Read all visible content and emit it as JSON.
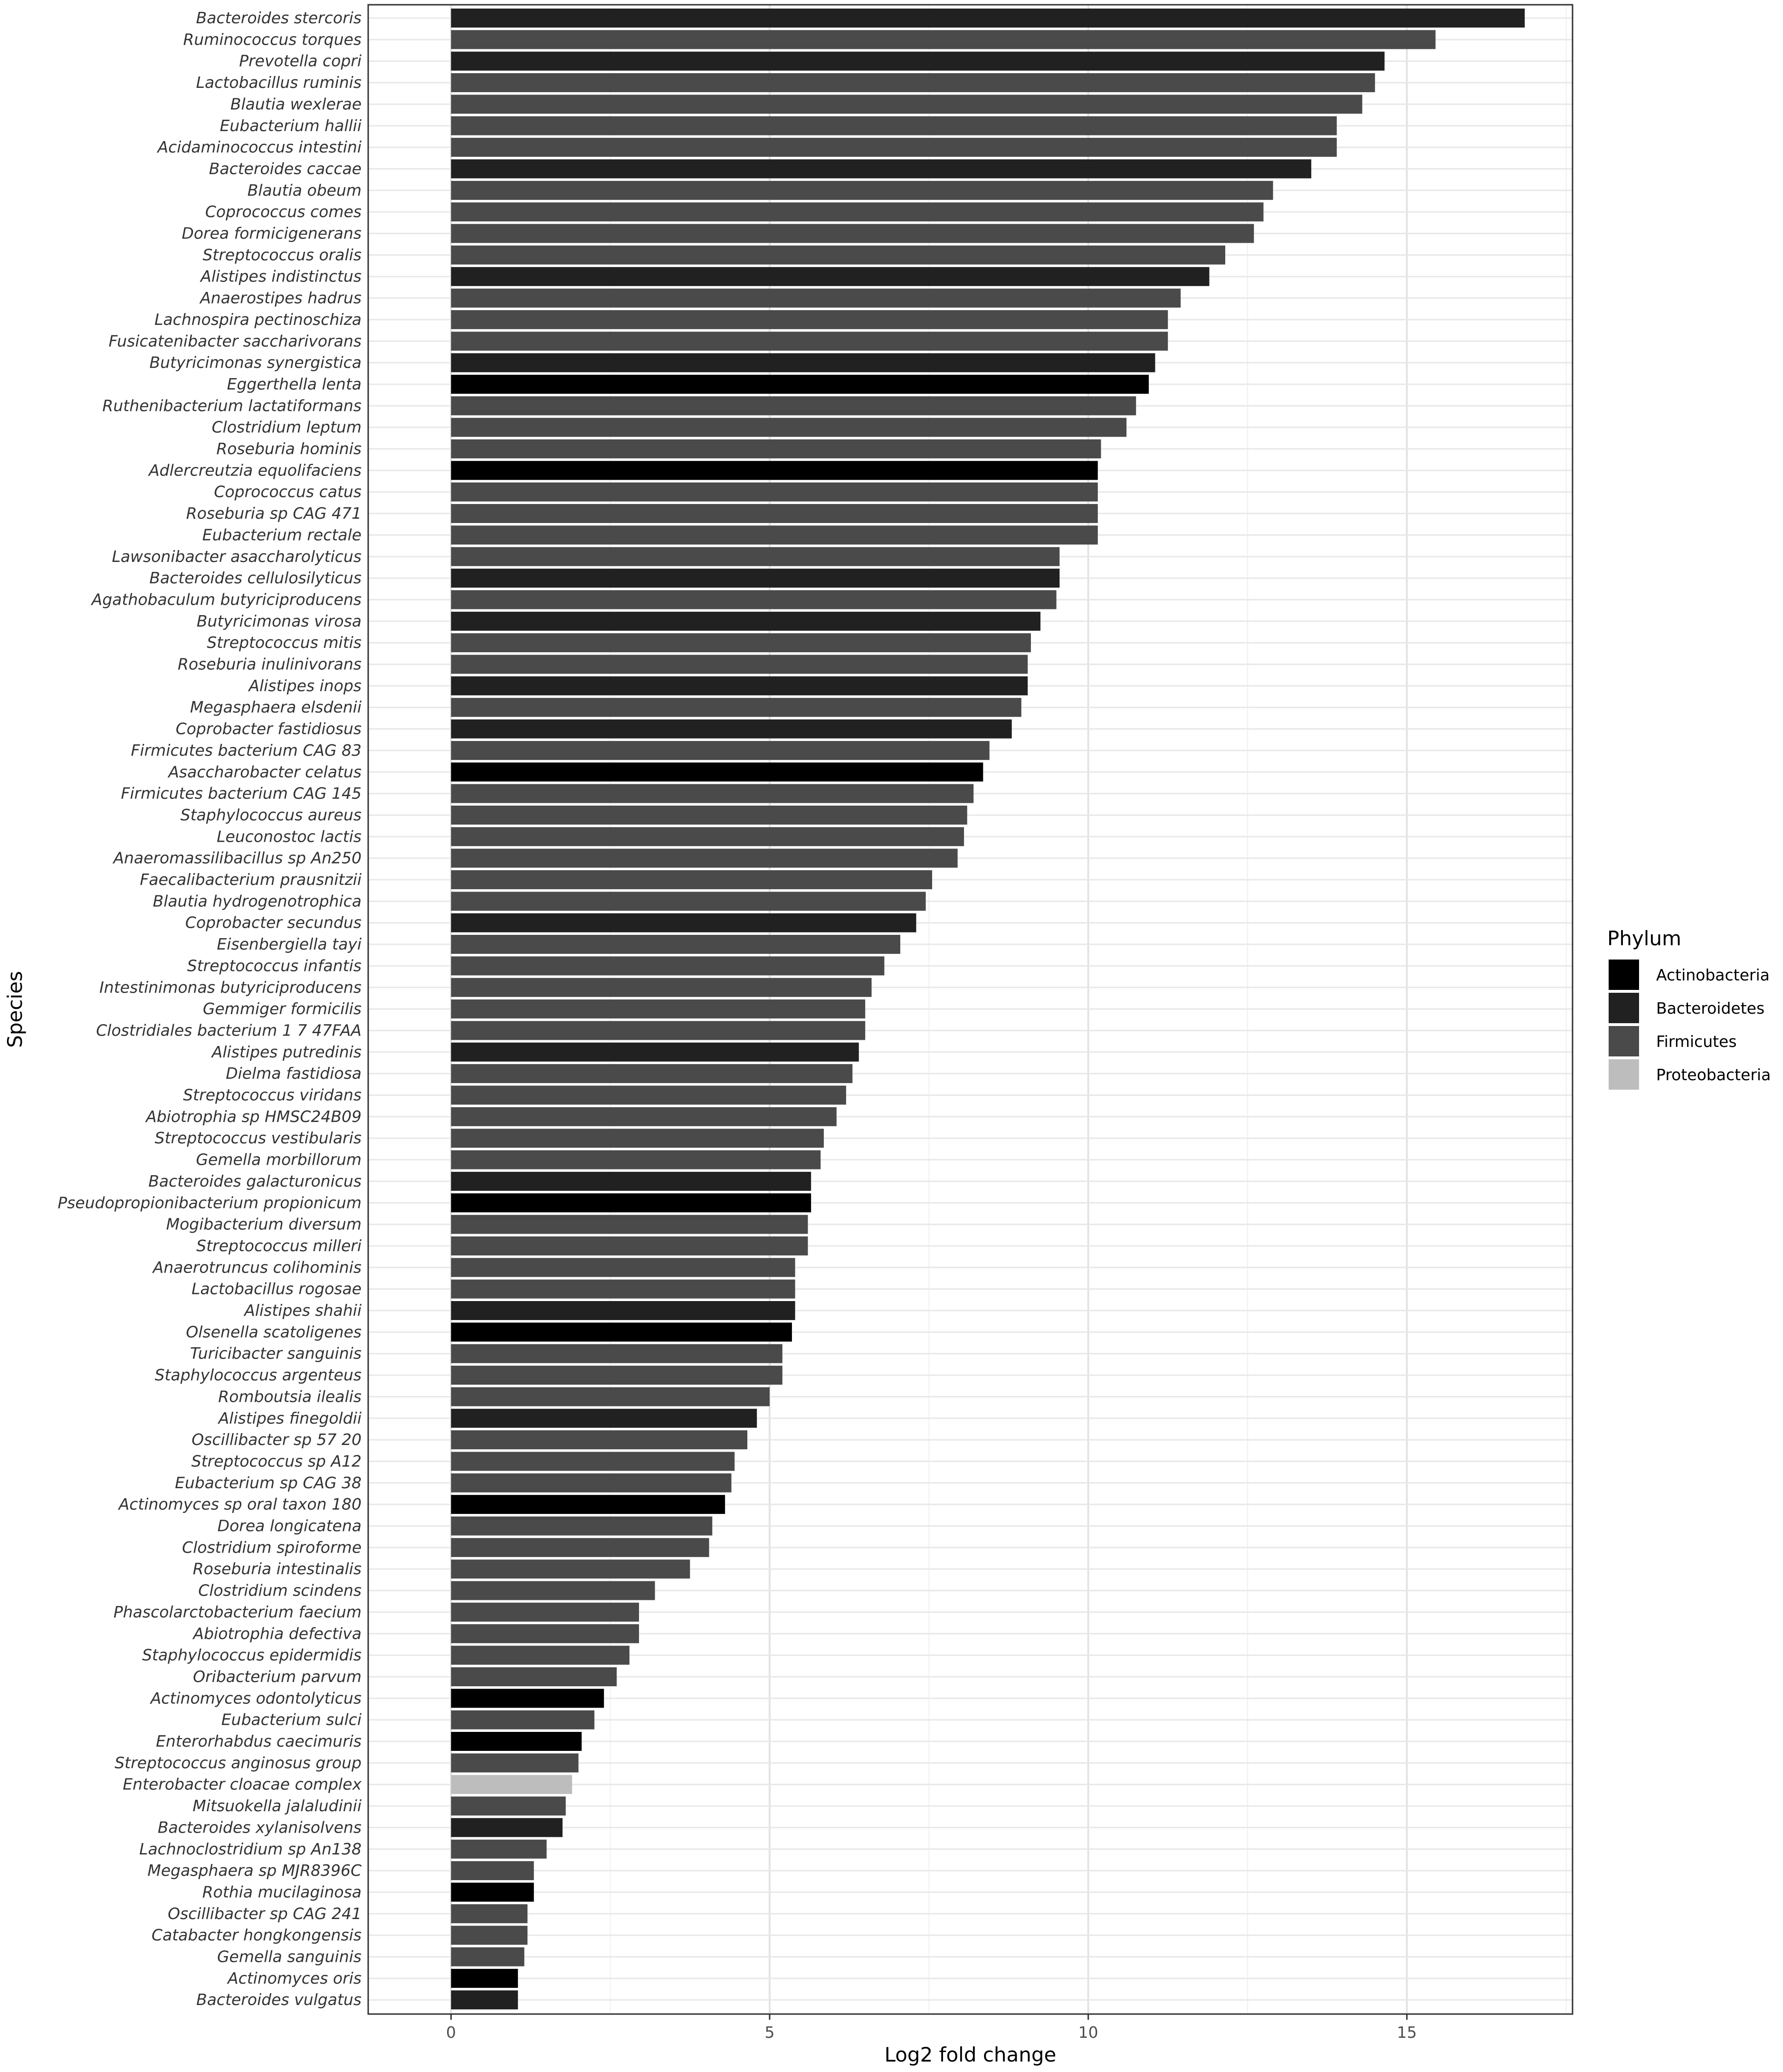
{
  "chart_data": {
    "type": "bar",
    "orientation": "horizontal",
    "xlabel": "Log2 fold change",
    "ylabel": "Species",
    "xlim": [
      -1.3,
      17.6
    ],
    "xticks": [
      0,
      5,
      10,
      15
    ],
    "grid": true,
    "legend": {
      "title": "Phylum",
      "placement": "right",
      "entries": [
        {
          "name": "Actinobacteria",
          "color": "#000000"
        },
        {
          "name": "Bacteroidetes",
          "color": "#212121"
        },
        {
          "name": "Firmicutes",
          "color": "#4a4a4a"
        },
        {
          "name": "Proteobacteria",
          "color": "#bdbdbd"
        }
      ]
    },
    "bars": [
      {
        "species": "Bacteroides stercoris",
        "value": 16.85,
        "phylum": "Bacteroidetes"
      },
      {
        "species": "Ruminococcus torques",
        "value": 15.45,
        "phylum": "Firmicutes"
      },
      {
        "species": "Prevotella copri",
        "value": 14.65,
        "phylum": "Bacteroidetes"
      },
      {
        "species": "Lactobacillus ruminis",
        "value": 14.5,
        "phylum": "Firmicutes"
      },
      {
        "species": "Blautia wexlerae",
        "value": 14.3,
        "phylum": "Firmicutes"
      },
      {
        "species": "Eubacterium hallii",
        "value": 13.9,
        "phylum": "Firmicutes"
      },
      {
        "species": "Acidaminococcus intestini",
        "value": 13.9,
        "phylum": "Firmicutes"
      },
      {
        "species": "Bacteroides caccae",
        "value": 13.5,
        "phylum": "Bacteroidetes"
      },
      {
        "species": "Blautia obeum",
        "value": 12.9,
        "phylum": "Firmicutes"
      },
      {
        "species": "Coprococcus comes",
        "value": 12.75,
        "phylum": "Firmicutes"
      },
      {
        "species": "Dorea formicigenerans",
        "value": 12.6,
        "phylum": "Firmicutes"
      },
      {
        "species": "Streptococcus oralis",
        "value": 12.15,
        "phylum": "Firmicutes"
      },
      {
        "species": "Alistipes indistinctus",
        "value": 11.9,
        "phylum": "Bacteroidetes"
      },
      {
        "species": "Anaerostipes hadrus",
        "value": 11.45,
        "phylum": "Firmicutes"
      },
      {
        "species": "Lachnospira pectinoschiza",
        "value": 11.25,
        "phylum": "Firmicutes"
      },
      {
        "species": "Fusicatenibacter saccharivorans",
        "value": 11.25,
        "phylum": "Firmicutes"
      },
      {
        "species": "Butyricimonas synergistica",
        "value": 11.05,
        "phylum": "Bacteroidetes"
      },
      {
        "species": "Eggerthella lenta",
        "value": 10.95,
        "phylum": "Actinobacteria"
      },
      {
        "species": "Ruthenibacterium lactatiformans",
        "value": 10.75,
        "phylum": "Firmicutes"
      },
      {
        "species": "Clostridium leptum",
        "value": 10.6,
        "phylum": "Firmicutes"
      },
      {
        "species": "Roseburia hominis",
        "value": 10.2,
        "phylum": "Firmicutes"
      },
      {
        "species": "Adlercreutzia equolifaciens",
        "value": 10.15,
        "phylum": "Actinobacteria"
      },
      {
        "species": "Coprococcus catus",
        "value": 10.15,
        "phylum": "Firmicutes"
      },
      {
        "species": "Roseburia sp CAG 471",
        "value": 10.15,
        "phylum": "Firmicutes"
      },
      {
        "species": "Eubacterium rectale",
        "value": 10.15,
        "phylum": "Firmicutes"
      },
      {
        "species": "Lawsonibacter asaccharolyticus",
        "value": 9.55,
        "phylum": "Firmicutes"
      },
      {
        "species": "Bacteroides cellulosilyticus",
        "value": 9.55,
        "phylum": "Bacteroidetes"
      },
      {
        "species": "Agathobaculum butyriciproducens",
        "value": 9.5,
        "phylum": "Firmicutes"
      },
      {
        "species": "Butyricimonas virosa",
        "value": 9.25,
        "phylum": "Bacteroidetes"
      },
      {
        "species": "Streptococcus mitis",
        "value": 9.1,
        "phylum": "Firmicutes"
      },
      {
        "species": "Roseburia inulinivorans",
        "value": 9.05,
        "phylum": "Firmicutes"
      },
      {
        "species": "Alistipes inops",
        "value": 9.05,
        "phylum": "Bacteroidetes"
      },
      {
        "species": "Megasphaera elsdenii",
        "value": 8.95,
        "phylum": "Firmicutes"
      },
      {
        "species": "Coprobacter fastidiosus",
        "value": 8.8,
        "phylum": "Bacteroidetes"
      },
      {
        "species": "Firmicutes bacterium CAG 83",
        "value": 8.45,
        "phylum": "Firmicutes"
      },
      {
        "species": "Asaccharobacter celatus",
        "value": 8.35,
        "phylum": "Actinobacteria"
      },
      {
        "species": "Firmicutes bacterium CAG 145",
        "value": 8.2,
        "phylum": "Firmicutes"
      },
      {
        "species": "Staphylococcus aureus",
        "value": 8.1,
        "phylum": "Firmicutes"
      },
      {
        "species": "Leuconostoc lactis",
        "value": 8.05,
        "phylum": "Firmicutes"
      },
      {
        "species": "Anaeromassilibacillus sp An250",
        "value": 7.95,
        "phylum": "Firmicutes"
      },
      {
        "species": "Faecalibacterium prausnitzii",
        "value": 7.55,
        "phylum": "Firmicutes"
      },
      {
        "species": "Blautia hydrogenotrophica",
        "value": 7.45,
        "phylum": "Firmicutes"
      },
      {
        "species": "Coprobacter secundus",
        "value": 7.3,
        "phylum": "Bacteroidetes"
      },
      {
        "species": "Eisenbergiella tayi",
        "value": 7.05,
        "phylum": "Firmicutes"
      },
      {
        "species": "Streptococcus infantis",
        "value": 6.8,
        "phylum": "Firmicutes"
      },
      {
        "species": "Intestinimonas butyriciproducens",
        "value": 6.6,
        "phylum": "Firmicutes"
      },
      {
        "species": "Gemmiger formicilis",
        "value": 6.5,
        "phylum": "Firmicutes"
      },
      {
        "species": "Clostridiales bacterium 1 7 47FAA",
        "value": 6.5,
        "phylum": "Firmicutes"
      },
      {
        "species": "Alistipes putredinis",
        "value": 6.4,
        "phylum": "Bacteroidetes"
      },
      {
        "species": "Dielma fastidiosa",
        "value": 6.3,
        "phylum": "Firmicutes"
      },
      {
        "species": "Streptococcus viridans",
        "value": 6.2,
        "phylum": "Firmicutes"
      },
      {
        "species": "Abiotrophia sp HMSC24B09",
        "value": 6.05,
        "phylum": "Firmicutes"
      },
      {
        "species": "Streptococcus vestibularis",
        "value": 5.85,
        "phylum": "Firmicutes"
      },
      {
        "species": "Gemella morbillorum",
        "value": 5.8,
        "phylum": "Firmicutes"
      },
      {
        "species": "Bacteroides galacturonicus",
        "value": 5.65,
        "phylum": "Bacteroidetes"
      },
      {
        "species": "Pseudopropionibacterium propionicum",
        "value": 5.65,
        "phylum": "Actinobacteria"
      },
      {
        "species": "Mogibacterium diversum",
        "value": 5.6,
        "phylum": "Firmicutes"
      },
      {
        "species": "Streptococcus milleri",
        "value": 5.6,
        "phylum": "Firmicutes"
      },
      {
        "species": "Anaerotruncus colihominis",
        "value": 5.4,
        "phylum": "Firmicutes"
      },
      {
        "species": "Lactobacillus rogosae",
        "value": 5.4,
        "phylum": "Firmicutes"
      },
      {
        "species": "Alistipes shahii",
        "value": 5.4,
        "phylum": "Bacteroidetes"
      },
      {
        "species": "Olsenella scatoligenes",
        "value": 5.35,
        "phylum": "Actinobacteria"
      },
      {
        "species": "Turicibacter sanguinis",
        "value": 5.2,
        "phylum": "Firmicutes"
      },
      {
        "species": "Staphylococcus argenteus",
        "value": 5.2,
        "phylum": "Firmicutes"
      },
      {
        "species": "Romboutsia ilealis",
        "value": 5.0,
        "phylum": "Firmicutes"
      },
      {
        "species": "Alistipes finegoldii",
        "value": 4.8,
        "phylum": "Bacteroidetes"
      },
      {
        "species": "Oscillibacter sp 57 20",
        "value": 4.65,
        "phylum": "Firmicutes"
      },
      {
        "species": "Streptococcus sp A12",
        "value": 4.45,
        "phylum": "Firmicutes"
      },
      {
        "species": "Eubacterium sp CAG 38",
        "value": 4.4,
        "phylum": "Firmicutes"
      },
      {
        "species": "Actinomyces sp oral taxon 180",
        "value": 4.3,
        "phylum": "Actinobacteria"
      },
      {
        "species": "Dorea longicatena",
        "value": 4.1,
        "phylum": "Firmicutes"
      },
      {
        "species": "Clostridium spiroforme",
        "value": 4.05,
        "phylum": "Firmicutes"
      },
      {
        "species": "Roseburia intestinalis",
        "value": 3.75,
        "phylum": "Firmicutes"
      },
      {
        "species": "Clostridium scindens",
        "value": 3.2,
        "phylum": "Firmicutes"
      },
      {
        "species": "Phascolarctobacterium faecium",
        "value": 2.95,
        "phylum": "Firmicutes"
      },
      {
        "species": "Abiotrophia defectiva",
        "value": 2.95,
        "phylum": "Firmicutes"
      },
      {
        "species": "Staphylococcus epidermidis",
        "value": 2.8,
        "phylum": "Firmicutes"
      },
      {
        "species": "Oribacterium parvum",
        "value": 2.6,
        "phylum": "Firmicutes"
      },
      {
        "species": "Actinomyces odontolyticus",
        "value": 2.4,
        "phylum": "Actinobacteria"
      },
      {
        "species": "Eubacterium sulci",
        "value": 2.25,
        "phylum": "Firmicutes"
      },
      {
        "species": "Enterorhabdus caecimuris",
        "value": 2.05,
        "phylum": "Actinobacteria"
      },
      {
        "species": "Streptococcus anginosus group",
        "value": 2.0,
        "phylum": "Firmicutes"
      },
      {
        "species": "Enterobacter cloacae complex",
        "value": 1.9,
        "phylum": "Proteobacteria"
      },
      {
        "species": "Mitsuokella jalaludinii",
        "value": 1.8,
        "phylum": "Firmicutes"
      },
      {
        "species": "Bacteroides xylanisolvens",
        "value": 1.75,
        "phylum": "Bacteroidetes"
      },
      {
        "species": "Lachnoclostridium sp An138",
        "value": 1.5,
        "phylum": "Firmicutes"
      },
      {
        "species": "Megasphaera sp MJR8396C",
        "value": 1.3,
        "phylum": "Firmicutes"
      },
      {
        "species": "Rothia mucilaginosa",
        "value": 1.3,
        "phylum": "Actinobacteria"
      },
      {
        "species": "Oscillibacter sp CAG 241",
        "value": 1.2,
        "phylum": "Firmicutes"
      },
      {
        "species": "Catabacter hongkongensis",
        "value": 1.2,
        "phylum": "Firmicutes"
      },
      {
        "species": "Gemella sanguinis",
        "value": 1.15,
        "phylum": "Firmicutes"
      },
      {
        "species": "Actinomyces oris",
        "value": 1.05,
        "phylum": "Actinobacteria"
      },
      {
        "species": "Bacteroides vulgatus",
        "value": 1.05,
        "phylum": "Bacteroidetes"
      }
    ]
  }
}
